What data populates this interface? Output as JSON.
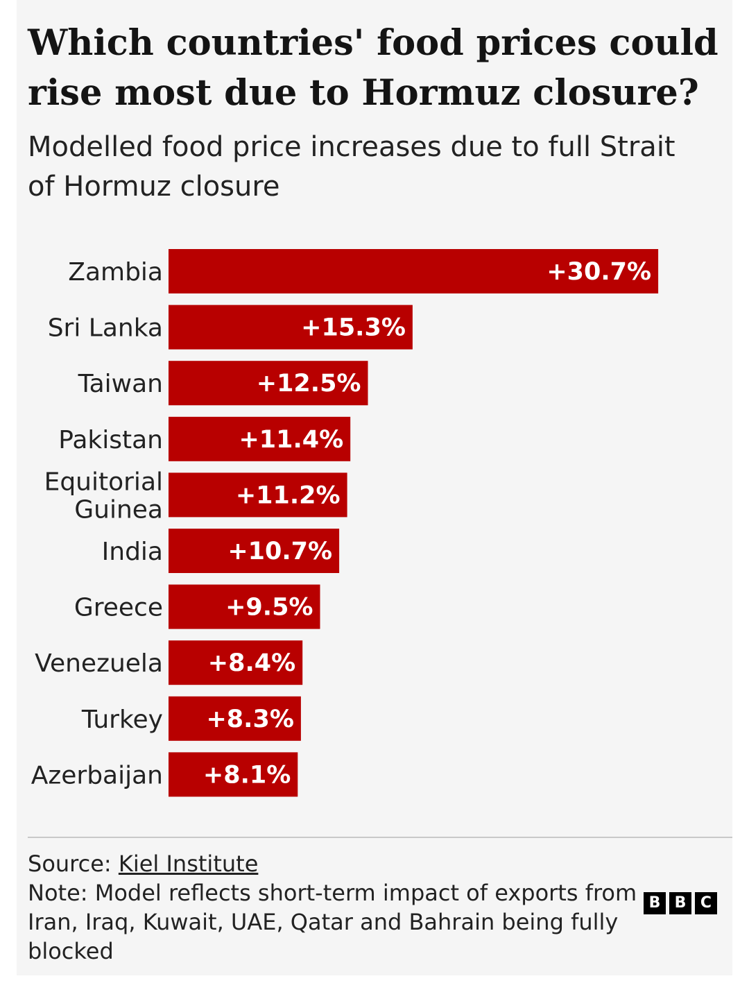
{
  "title": "Which countries' food prices could rise most due to Hormuz closure?",
  "subtitle": "Modelled food price increases due to full Strait of Hormuz closure",
  "chart_data": {
    "type": "bar",
    "orientation": "horizontal",
    "categories": [
      [
        "Zambia"
      ],
      [
        "Sri Lanka"
      ],
      [
        "Taiwan"
      ],
      [
        "Pakistan"
      ],
      [
        "Equitorial",
        "Guinea"
      ],
      [
        "India"
      ],
      [
        "Greece"
      ],
      [
        "Venezuela"
      ],
      [
        "Turkey"
      ],
      [
        "Azerbaijan"
      ]
    ],
    "values": [
      30.7,
      15.3,
      12.5,
      11.4,
      11.2,
      10.7,
      9.5,
      8.4,
      8.3,
      8.1
    ],
    "value_labels": [
      "+30.7%",
      "+15.3%",
      "+12.5%",
      "+11.4%",
      "+11.2%",
      "+10.7%",
      "+9.5%",
      "+8.4%",
      "+8.3%",
      "+8.1%"
    ],
    "bar_color": "#b80000",
    "grid": false,
    "legend": "none"
  },
  "footer": {
    "source_prefix": "Source: ",
    "source_link": "Kiel Institute",
    "note": "Note: Model reflects short-term impact of exports from Iran, Iraq, Kuwait, UAE, Qatar and Bahrain being fully blocked"
  },
  "logo": {
    "letters": [
      "B",
      "B",
      "C"
    ]
  }
}
